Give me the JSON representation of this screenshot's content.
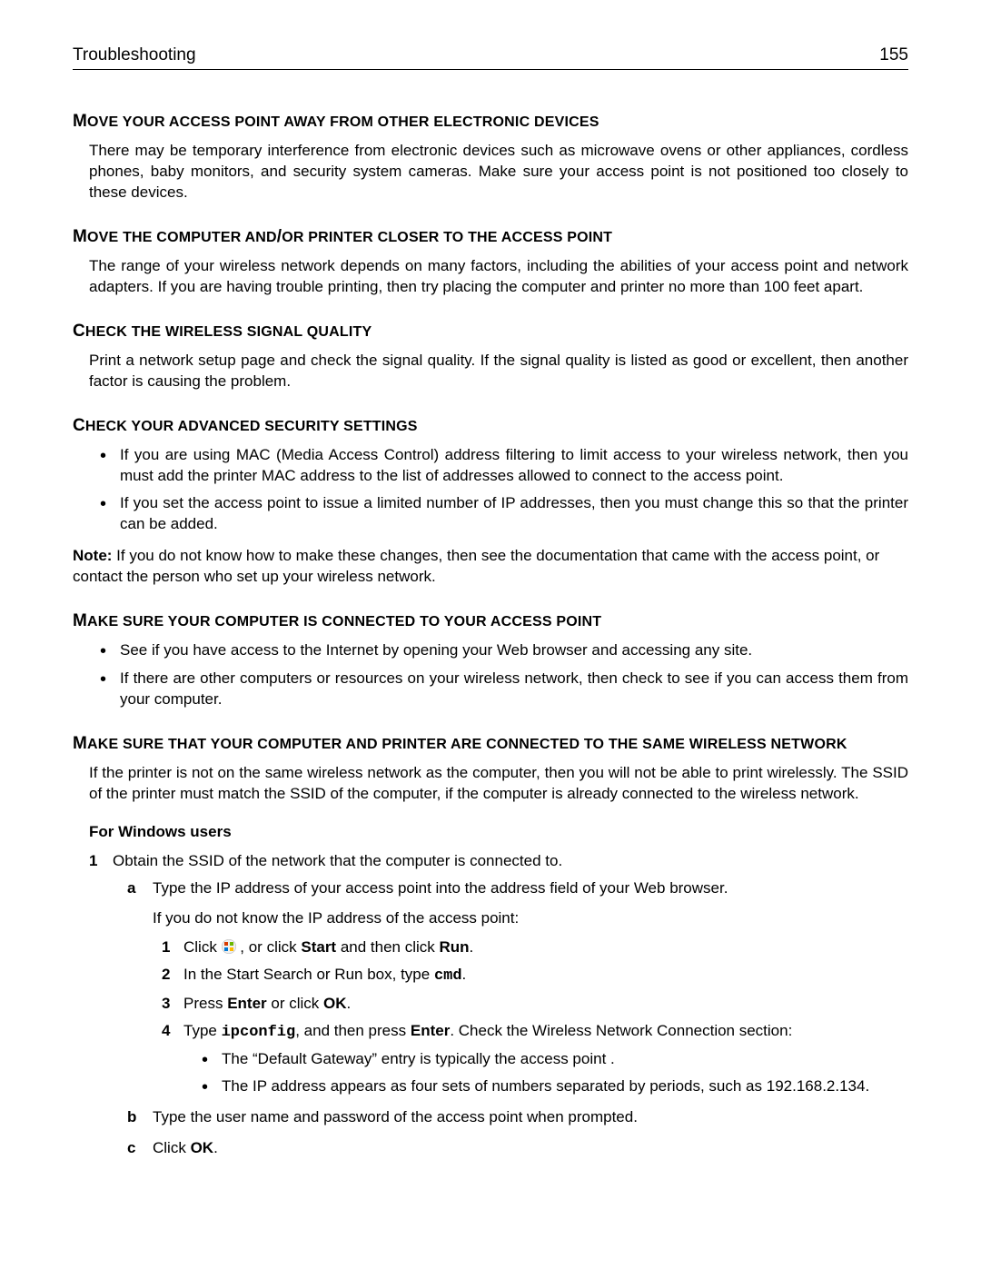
{
  "header": {
    "title": "Troubleshooting",
    "page": "155"
  },
  "sections": {
    "s1": {
      "head_html": "<span class='cap'>M</span>OVE YOUR ACCESS POINT AWAY FROM OTHER ELECTRONIC DEVICES",
      "body": "There may be temporary interference from electronic devices such as microwave ovens or other appliances, cordless phones, baby monitors, and security system cameras. Make sure your access point is not positioned too closely to these devices."
    },
    "s2": {
      "head_html": "<span class='cap'>M</span>OVE THE COMPUTER AND<span class='slash'>/</span>OR PRINTER CLOSER TO THE ACCESS POINT",
      "body": "The range of your wireless network depends on many factors, including the abilities of your access point and network adapters. If you are having trouble printing, then try placing the computer and printer no more than 100 feet apart."
    },
    "s3": {
      "head_html": "<span class='cap'>C</span>HECK THE WIRELESS SIGNAL QUALITY",
      "body": "Print a network setup page and check the signal quality. If the signal quality is listed as good or excellent, then another factor is causing the problem."
    },
    "s4": {
      "head_html": "<span class='cap'>C</span>HECK YOUR ADVANCED SECURITY SETTINGS",
      "b1": "If you are using MAC (Media Access Control) address filtering to limit access to your wireless network, then you must add the printer MAC address to the list of addresses allowed to connect to the access point.",
      "b2": "If you set the access point to issue a limited number of IP addresses, then you must change this so that the printer can be added.",
      "note_html": "<b>Note:</b> If you do not know how to make these changes, then see the documentation that came with the access point, or contact the person who set up your wireless network."
    },
    "s5": {
      "head_html": "<span class='cap'>M</span>AKE SURE YOUR COMPUTER IS CONNECTED TO YOUR ACCESS POINT",
      "b1": "See if you have access to the Internet by opening your Web browser and accessing any site.",
      "b2": "If there are other computers or resources on your wireless network, then check to see if you can access them from your computer."
    },
    "s6": {
      "head_html": "<span class='cap'>M</span>AKE SURE THAT YOUR COMPUTER AND PRINTER ARE CONNECTED TO THE SAME WIRELESS NETWORK",
      "body": "If the printer is not on the same wireless network as the computer, then you will not be able to print wirelessly. The SSID of the printer must match the SSID of the computer, if the computer is already connected to the wireless network.",
      "sub": "For Windows users",
      "step1": "Obtain the SSID of the network that the computer is connected to.",
      "a": "Type the IP address of your access point into the address field of your Web browser.",
      "a_p": "If you do not know the IP address of the access point:",
      "i1_html": "Click <span class='win-icon' data-name='windows-start-icon' data-interactable='false'></span> , or click <b>Start</b> and then click <b>Run</b>.",
      "i2_html": "In the Start Search or Run box, type <span class='mono'>cmd</span>.",
      "i3_html": "Press <b>Enter</b> or click <b>OK</b>.",
      "i4_html": "Type <span class='mono'>ipconfig</span>, and then press <b>Enter</b>. Check the Wireless Network Connection section:",
      "i4b1": "The “Default Gateway” entry is typically the access point .",
      "i4b2": "The IP address appears as four sets of numbers separated by periods, such as 192.168.2.134.",
      "b": "Type the user name and password of the access point when prompted.",
      "c_html": "Click <b>OK</b>."
    }
  }
}
